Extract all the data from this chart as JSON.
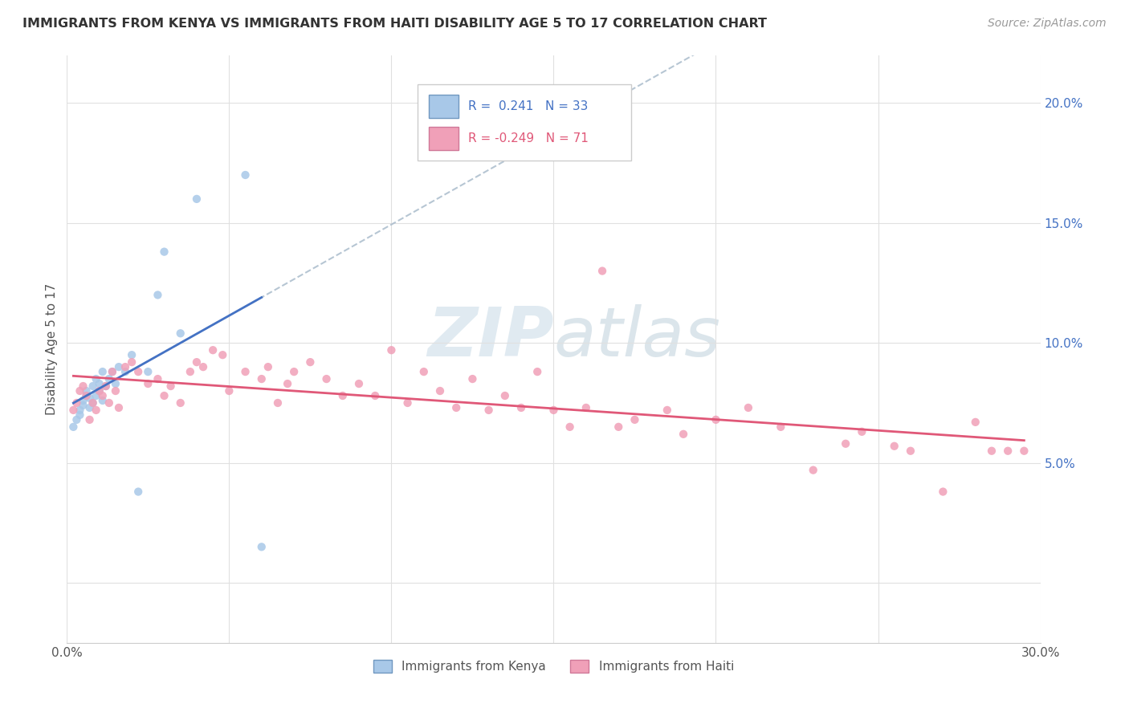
{
  "title": "IMMIGRANTS FROM KENYA VS IMMIGRANTS FROM HAITI DISABILITY AGE 5 TO 17 CORRELATION CHART",
  "source": "Source: ZipAtlas.com",
  "ylabel_label": "Disability Age 5 to 17",
  "xlim": [
    0.0,
    0.3
  ],
  "ylim": [
    -0.025,
    0.22
  ],
  "kenya_R": 0.241,
  "kenya_N": 33,
  "haiti_R": -0.249,
  "haiti_N": 71,
  "kenya_color": "#a8c8e8",
  "haiti_color": "#f0a0b8",
  "kenya_line_color": "#4472c4",
  "haiti_line_color": "#e05878",
  "dashed_line_color": "#aabccc",
  "watermark_color": "#ccdde8",
  "background_color": "#ffffff",
  "grid_color": "#e0e0e0",
  "kenya_x": [
    0.002,
    0.003,
    0.004,
    0.004,
    0.005,
    0.005,
    0.006,
    0.006,
    0.007,
    0.007,
    0.008,
    0.008,
    0.009,
    0.009,
    0.01,
    0.01,
    0.011,
    0.011,
    0.012,
    0.013,
    0.014,
    0.015,
    0.016,
    0.018,
    0.02,
    0.022,
    0.025,
    0.028,
    0.03,
    0.035,
    0.04,
    0.055,
    0.06
  ],
  "kenya_y": [
    0.065,
    0.068,
    0.07,
    0.072,
    0.074,
    0.076,
    0.078,
    0.08,
    0.073,
    0.077,
    0.075,
    0.082,
    0.078,
    0.085,
    0.08,
    0.083,
    0.076,
    0.088,
    0.082,
    0.085,
    0.088,
    0.083,
    0.09,
    0.088,
    0.095,
    0.038,
    0.088,
    0.12,
    0.138,
    0.104,
    0.16,
    0.17,
    0.015
  ],
  "haiti_x": [
    0.002,
    0.003,
    0.004,
    0.005,
    0.006,
    0.007,
    0.008,
    0.009,
    0.01,
    0.011,
    0.012,
    0.013,
    0.014,
    0.015,
    0.016,
    0.018,
    0.02,
    0.022,
    0.025,
    0.028,
    0.03,
    0.032,
    0.035,
    0.038,
    0.04,
    0.042,
    0.045,
    0.048,
    0.05,
    0.055,
    0.06,
    0.062,
    0.065,
    0.068,
    0.07,
    0.075,
    0.08,
    0.085,
    0.09,
    0.095,
    0.1,
    0.105,
    0.11,
    0.115,
    0.12,
    0.125,
    0.13,
    0.135,
    0.14,
    0.145,
    0.15,
    0.155,
    0.16,
    0.165,
    0.17,
    0.175,
    0.185,
    0.19,
    0.2,
    0.21,
    0.22,
    0.23,
    0.24,
    0.245,
    0.255,
    0.26,
    0.27,
    0.28,
    0.285,
    0.29,
    0.295
  ],
  "haiti_y": [
    0.072,
    0.075,
    0.08,
    0.082,
    0.078,
    0.068,
    0.075,
    0.072,
    0.08,
    0.078,
    0.082,
    0.075,
    0.088,
    0.08,
    0.073,
    0.09,
    0.092,
    0.088,
    0.083,
    0.085,
    0.078,
    0.082,
    0.075,
    0.088,
    0.092,
    0.09,
    0.097,
    0.095,
    0.08,
    0.088,
    0.085,
    0.09,
    0.075,
    0.083,
    0.088,
    0.092,
    0.085,
    0.078,
    0.083,
    0.078,
    0.097,
    0.075,
    0.088,
    0.08,
    0.073,
    0.085,
    0.072,
    0.078,
    0.073,
    0.088,
    0.072,
    0.065,
    0.073,
    0.13,
    0.065,
    0.068,
    0.072,
    0.062,
    0.068,
    0.073,
    0.065,
    0.047,
    0.058,
    0.063,
    0.057,
    0.055,
    0.038,
    0.067,
    0.055,
    0.055,
    0.055
  ],
  "legend_label_kenya": "Immigrants from Kenya",
  "legend_label_haiti": "Immigrants from Haiti"
}
